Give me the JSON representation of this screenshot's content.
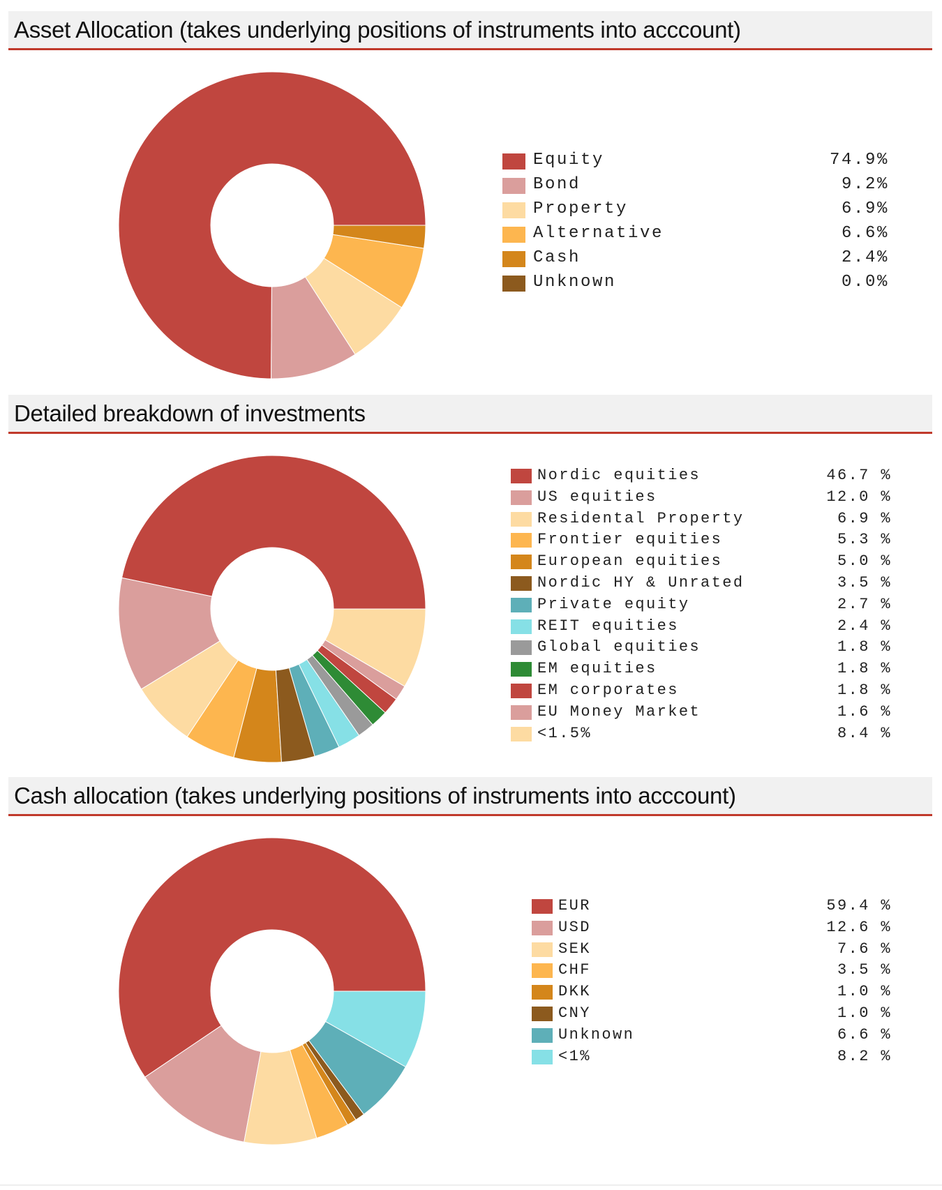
{
  "sections": [
    {
      "title": "Asset Allocation (takes underlying positions of instruments into acccount)",
      "legend_labels": [
        "Equity",
        "Bond",
        "Property",
        "Alternative",
        "Cash",
        "Unknown"
      ],
      "legend_values": [
        "74.9%",
        "9.2%",
        "6.9%",
        "6.6%",
        "2.4%",
        "0.0%"
      ]
    },
    {
      "title": "Detailed breakdown of investments",
      "legend_labels": [
        "Nordic equities",
        "US equities",
        "Residental Property",
        "Frontier equities",
        "European equities",
        "Nordic HY & Unrated",
        "Private equity",
        "REIT equities",
        "Global equities",
        "EM equities",
        "EM corporates",
        "EU Money Market",
        "<1.5%"
      ],
      "legend_values": [
        "46.7 %",
        "12.0 %",
        "6.9 %",
        "5.3 %",
        "5.0 %",
        "3.5 %",
        "2.7 %",
        "2.4 %",
        "1.8 %",
        "1.8 %",
        "1.8 %",
        "1.6 %",
        "8.4 %"
      ]
    },
    {
      "title": "Cash allocation (takes underlying positions of instruments into acccount)",
      "legend_labels": [
        "EUR",
        "USD",
        "SEK",
        "CHF",
        "DKK",
        "CNY",
        "Unknown",
        "<1%"
      ],
      "legend_values": [
        "59.4 %",
        "12.6 %",
        "7.6 %",
        "3.5 %",
        "1.0 %",
        "1.0 %",
        "6.6 %",
        "8.2 %"
      ]
    }
  ],
  "chart_data": [
    {
      "type": "pie",
      "variant": "donut",
      "title": "Asset Allocation (takes underlying positions of instruments into acccount)",
      "categories": [
        "Equity",
        "Bond",
        "Property",
        "Alternative",
        "Cash",
        "Unknown"
      ],
      "values": [
        74.9,
        9.2,
        6.9,
        6.6,
        2.4,
        0.0
      ],
      "colors": [
        "#c0463f",
        "#da9e9c",
        "#fddba2",
        "#fdb64f",
        "#d4861b",
        "#8c5a1e"
      ],
      "legend": "right"
    },
    {
      "type": "pie",
      "variant": "donut",
      "title": "Detailed breakdown of investments",
      "categories": [
        "Nordic equities",
        "US equities",
        "Residental Property",
        "Frontier equities",
        "European equities",
        "Nordic HY & Unrated",
        "Private equity",
        "REIT equities",
        "Global equities",
        "EM equities",
        "EM corporates",
        "EU Money Market",
        "<1.5%"
      ],
      "values": [
        46.7,
        12.0,
        6.9,
        5.3,
        5.0,
        3.5,
        2.7,
        2.4,
        1.8,
        1.8,
        1.8,
        1.6,
        8.4
      ],
      "colors": [
        "#c0463f",
        "#da9e9c",
        "#fddba2",
        "#fdb64f",
        "#d4861b",
        "#8c5a1e",
        "#5eafb8",
        "#86e0e6",
        "#9a9a9a",
        "#2e8b35",
        "#c0463f",
        "#da9e9c",
        "#fddba2"
      ],
      "legend": "right"
    },
    {
      "type": "pie",
      "variant": "donut",
      "title": "Cash allocation (takes underlying positions of instruments into acccount)",
      "categories": [
        "EUR",
        "USD",
        "SEK",
        "CHF",
        "DKK",
        "CNY",
        "Unknown",
        "<1%"
      ],
      "values": [
        59.4,
        12.6,
        7.6,
        3.5,
        1.0,
        1.0,
        6.6,
        8.2
      ],
      "colors": [
        "#c0463f",
        "#da9e9c",
        "#fddba2",
        "#fdb64f",
        "#d4861b",
        "#8c5a1e",
        "#5eafb8",
        "#86e0e6"
      ],
      "legend": "right"
    }
  ]
}
